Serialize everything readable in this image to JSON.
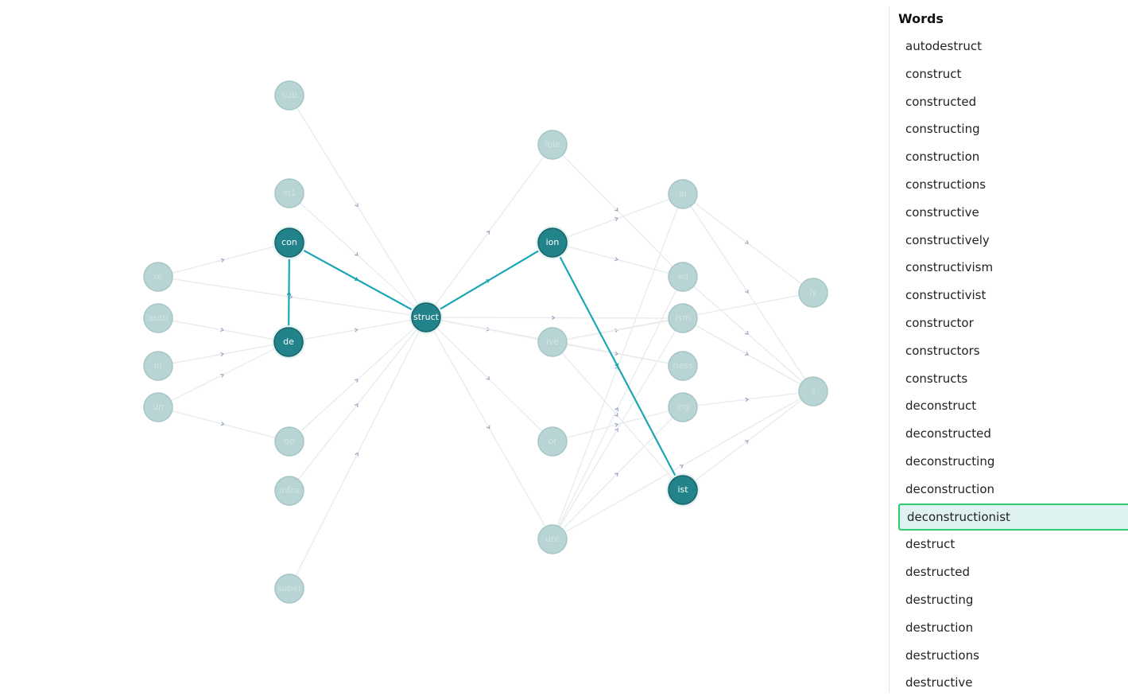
{
  "graph": {
    "nodes": [
      "sub",
      "in1",
      "con",
      "de",
      "ob",
      "infra",
      "super",
      "re",
      "auto",
      "in",
      "un",
      "struct",
      "ible",
      "ion",
      "ive",
      "or",
      "ure",
      "al",
      "ed",
      "ism",
      "ness",
      "ing",
      "ist",
      "ly",
      "s"
    ]
  },
  "sidebar": {
    "title": "Words",
    "words": [
      "autodestruct",
      "construct",
      "constructed",
      "constructing",
      "construction",
      "constructions",
      "constructive",
      "constructively",
      "constructivism",
      "constructivist",
      "constructor",
      "constructors",
      "constructs",
      "deconstruct",
      "deconstructed",
      "deconstructing",
      "deconstruction",
      "deconstructionist",
      "destruct",
      "destructed",
      "destructing",
      "destruction",
      "destructions",
      "destructive"
    ]
  }
}
